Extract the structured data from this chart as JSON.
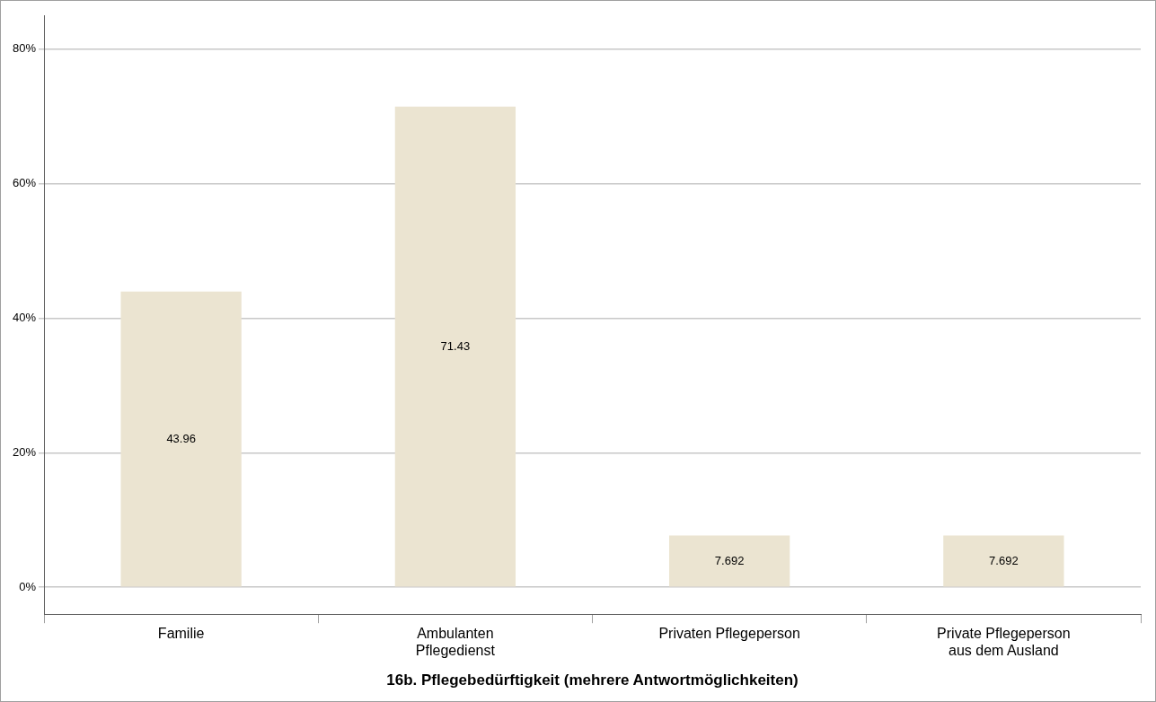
{
  "chart_data": {
    "type": "bar",
    "xlabel": "16b. Pflegebedürftigkeit (mehrere Antwortmöglichkeiten)",
    "categories": [
      "Familie",
      "Ambulanten Pflegedienst",
      "Privaten Pflegeperson",
      "Private Pflegeperson aus dem Ausland"
    ],
    "values": [
      43.96,
      71.43,
      7.692,
      7.692
    ],
    "color": "#ebe4d1",
    "ylim": [
      -4,
      85
    ],
    "yticks": [
      {
        "value": 0,
        "label": "0%"
      },
      {
        "value": 20,
        "label": "20%"
      },
      {
        "value": 40,
        "label": "40%"
      },
      {
        "value": 60,
        "label": "60%"
      },
      {
        "value": 80,
        "label": "80%"
      }
    ],
    "grid": "y",
    "data_labels": true,
    "legend": false
  }
}
